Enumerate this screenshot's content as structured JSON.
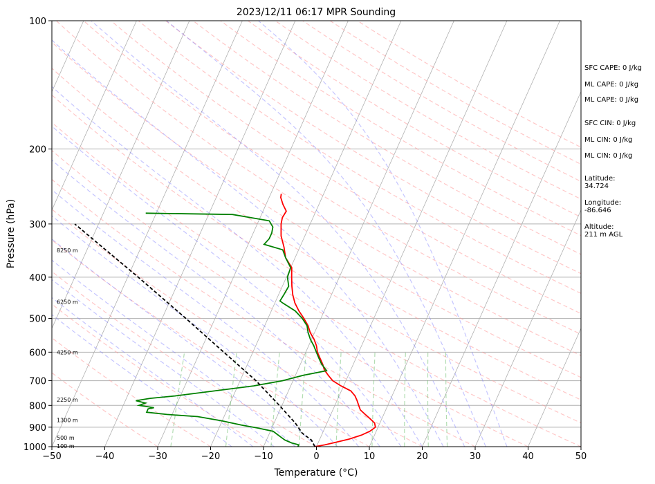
{
  "chart_data": {
    "type": "line",
    "title": "2023/12/11 06:17 MPR Sounding",
    "xlabel": "Temperature (°C)",
    "ylabel": "Pressure (hPa)",
    "xlim": [
      -50,
      50
    ],
    "ylim": [
      1000,
      100
    ],
    "y_scale": "log",
    "x_ticks": [
      -50,
      -40,
      -30,
      -20,
      -10,
      0,
      10,
      20,
      30,
      40,
      50
    ],
    "x_tick_labels": [
      "−50",
      "−40",
      "−30",
      "−20",
      "−10",
      "0",
      "10",
      "20",
      "30",
      "40",
      "50"
    ],
    "y_ticks": [
      1000,
      900,
      800,
      700,
      600,
      500,
      400,
      300,
      200,
      100
    ],
    "y_tick_labels": [
      "1000",
      "900",
      "800",
      "700",
      "600",
      "500",
      "400",
      "300",
      "200",
      "100"
    ],
    "grid": true,
    "skew_deg_per_unit": 36,
    "series": [
      {
        "color": "#ff0000",
        "points": [
          [
            1000,
            -0.3
          ],
          [
            990,
            1.5
          ],
          [
            975,
            3.5
          ],
          [
            960,
            5.5
          ],
          [
            940,
            7.5
          ],
          [
            920,
            8.8
          ],
          [
            900,
            9.5
          ],
          [
            880,
            9.0
          ],
          [
            860,
            7.8
          ],
          [
            840,
            6.5
          ],
          [
            820,
            5.2
          ],
          [
            800,
            4.5
          ],
          [
            780,
            3.8
          ],
          [
            760,
            3.0
          ],
          [
            740,
            1.8
          ],
          [
            720,
            -0.5
          ],
          [
            700,
            -2.5
          ],
          [
            680,
            -3.8
          ],
          [
            660,
            -5.0
          ],
          [
            640,
            -5.8
          ],
          [
            620,
            -6.8
          ],
          [
            600,
            -7.8
          ],
          [
            580,
            -8.5
          ],
          [
            560,
            -9.5
          ],
          [
            540,
            -10.8
          ],
          [
            520,
            -11.8
          ],
          [
            500,
            -13.2
          ],
          [
            480,
            -14.8
          ],
          [
            460,
            -16.2
          ],
          [
            440,
            -17.3
          ],
          [
            420,
            -18.2
          ],
          [
            400,
            -19.0
          ],
          [
            380,
            -19.8
          ],
          [
            360,
            -21.8
          ],
          [
            340,
            -23.0
          ],
          [
            320,
            -24.5
          ],
          [
            300,
            -25.5
          ],
          [
            290,
            -25.8
          ],
          [
            280,
            -25.6
          ],
          [
            270,
            -26.8
          ],
          [
            260,
            -27.8
          ],
          [
            255,
            -28.0
          ]
        ]
      },
      {
        "color": "#008000",
        "points": [
          [
            1000,
            -3.5
          ],
          [
            990,
            -3.5
          ],
          [
            980,
            -5.0
          ],
          [
            965,
            -6.5
          ],
          [
            950,
            -7.5
          ],
          [
            935,
            -8.5
          ],
          [
            920,
            -9.5
          ],
          [
            905,
            -12.5
          ],
          [
            890,
            -16.0
          ],
          [
            870,
            -20.0
          ],
          [
            850,
            -25.0
          ],
          [
            840,
            -31.0
          ],
          [
            830,
            -35.0
          ],
          [
            815,
            -35.0
          ],
          [
            810,
            -34.0
          ],
          [
            800,
            -37.0
          ],
          [
            790,
            -36.0
          ],
          [
            780,
            -38.0
          ],
          [
            770,
            -35.5
          ],
          [
            760,
            -31.0
          ],
          [
            740,
            -24.0
          ],
          [
            720,
            -17.0
          ],
          [
            700,
            -12.0
          ],
          [
            680,
            -8.5
          ],
          [
            663,
            -4.5
          ],
          [
            640,
            -6.0
          ],
          [
            620,
            -7.0
          ],
          [
            600,
            -8.0
          ],
          [
            580,
            -9.0
          ],
          [
            560,
            -10.2
          ],
          [
            540,
            -11.2
          ],
          [
            520,
            -12.0
          ],
          [
            500,
            -13.5
          ],
          [
            480,
            -15.5
          ],
          [
            460,
            -18.5
          ],
          [
            455,
            -19.2
          ],
          [
            440,
            -19.0
          ],
          [
            420,
            -18.8
          ],
          [
            400,
            -19.8
          ],
          [
            380,
            -20.0
          ],
          [
            360,
            -21.8
          ],
          [
            345,
            -23.0
          ],
          [
            335,
            -27.0
          ],
          [
            325,
            -26.5
          ],
          [
            315,
            -26.5
          ],
          [
            305,
            -26.8
          ],
          [
            295,
            -28.0
          ],
          [
            285,
            -35.5
          ],
          [
            283,
            -52.0
          ]
        ]
      },
      {
        "color": "#000000",
        "dashed": true,
        "points": [
          [
            1000,
            -0.3
          ],
          [
            965,
            -1.5
          ],
          [
            930,
            -3.8
          ],
          [
            880,
            -6.0
          ],
          [
            800,
            -10.5
          ],
          [
            700,
            -17.0
          ],
          [
            600,
            -25.5
          ],
          [
            500,
            -35.5
          ],
          [
            400,
            -48.0
          ],
          [
            300,
            -64.5
          ]
        ]
      }
    ],
    "height_labels": [
      {
        "label": "100 m",
        "p": 997
      },
      {
        "label": "500 m",
        "p": 953
      },
      {
        "label": "1300 m",
        "p": 866
      },
      {
        "label": "2250 m",
        "p": 776
      },
      {
        "label": "4250 m",
        "p": 600
      },
      {
        "label": "6250 m",
        "p": 457
      },
      {
        "label": "8250 m",
        "p": 346
      }
    ],
    "annotations": [
      "SFC CAPE: 0 J/kg",
      "ML CAPE: 0 J/kg",
      "ML CAPE: 0 J/kg",
      "SFC CIN: 0 J/kg",
      "ML CIN: 0 J/kg",
      "ML CIN: 0 J/kg",
      "Latitude:\n34.724",
      "Longitude:\n-86.646",
      "Altitude:\n211 m AGL"
    ],
    "background_colors": {
      "isotherm": "#b0b0b0",
      "dry_adiabat": "#ff9999",
      "moist_adiabat": "#7f7fff",
      "mixing_ratio": "#66bb66",
      "pressure_grid": "#b0b0b0"
    }
  }
}
